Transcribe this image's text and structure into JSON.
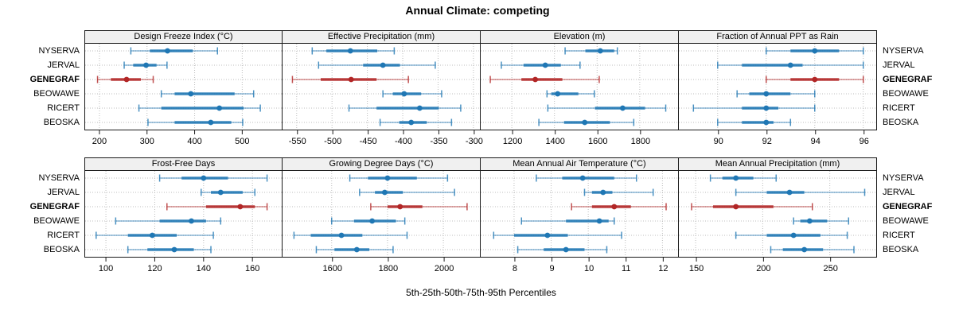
{
  "title": "Annual Climate: competing",
  "caption": "5th-25th-50th-75th-95th Percentiles",
  "sites": [
    "NYSERVA",
    "JERVAL",
    "GENEGRAF",
    "BEOWAWE",
    "RICERT",
    "BEOSKA"
  ],
  "highlight_site": "GENEGRAF",
  "percentile_levels": [
    5,
    25,
    50,
    75,
    95
  ],
  "colors": {
    "series": "#1f77b4",
    "highlight": "#b22626",
    "grid": "#bdbdbd",
    "header_bg": "#f0f0f0",
    "border": "#1a1a1a",
    "text": "#000000"
  },
  "chart_data": [
    {
      "type": "dot-interval",
      "title": "Design Freeze Index (°C)",
      "row": 0,
      "col": 0,
      "xlim": [
        170,
        583
      ],
      "ticks": [
        200,
        300,
        400,
        500
      ],
      "values": [
        [
          266,
          306,
          343,
          396,
          448
        ],
        [
          252,
          271,
          298,
          320,
          342
        ],
        [
          196,
          224,
          257,
          287,
          313
        ],
        [
          330,
          358,
          392,
          484,
          524
        ],
        [
          283,
          330,
          452,
          503,
          538
        ],
        [
          302,
          358,
          434,
          477,
          501
        ]
      ]
    },
    {
      "type": "dot-interval",
      "title": "Effective Precipitation (mm)",
      "row": 0,
      "col": 1,
      "xlim": [
        -570,
        -292
      ],
      "ticks": [
        -550,
        -500,
        -450,
        -400,
        -350,
        -300
      ],
      "values": [
        [
          -528,
          -508,
          -474,
          -436,
          -412
        ],
        [
          -519,
          -456,
          -428,
          -404,
          -354
        ],
        [
          -556,
          -516,
          -473,
          -437,
          -392
        ],
        [
          -428,
          -414,
          -398,
          -374,
          -345
        ],
        [
          -476,
          -437,
          -376,
          -349,
          -318
        ],
        [
          -432,
          -405,
          -388,
          -366,
          -331
        ]
      ]
    },
    {
      "type": "dot-interval",
      "title": "Elevation (m)",
      "row": 0,
      "col": 2,
      "xlim": [
        1054,
        1976
      ],
      "ticks": [
        1200,
        1400,
        1600,
        1800
      ],
      "values": [
        [
          1450,
          1545,
          1615,
          1680,
          1695
        ],
        [
          1151,
          1255,
          1357,
          1430,
          1520
        ],
        [
          1099,
          1245,
          1310,
          1437,
          1610
        ],
        [
          1365,
          1385,
          1415,
          1512,
          1587
        ],
        [
          1369,
          1590,
          1720,
          1825,
          1922
        ],
        [
          1327,
          1445,
          1542,
          1660,
          1772
        ]
      ]
    },
    {
      "type": "dot-interval",
      "title": "Fraction of Annual PPT as Rain",
      "row": 0,
      "col": 3,
      "xlim": [
        88.4,
        96.5
      ],
      "ticks": [
        90,
        92,
        94,
        96
      ],
      "values": [
        [
          92,
          93,
          94,
          95,
          96
        ],
        [
          90,
          91,
          93,
          93.5,
          96
        ],
        [
          92,
          93,
          94,
          95,
          96
        ],
        [
          90.8,
          91.3,
          92,
          93,
          94
        ],
        [
          89,
          91,
          92,
          92.5,
          94
        ],
        [
          90,
          91,
          92,
          92.3,
          93
        ]
      ]
    },
    {
      "type": "dot-interval",
      "title": "Frost-Free Days",
      "row": 1,
      "col": 0,
      "xlim": [
        91.5,
        172
      ],
      "ticks": [
        100,
        120,
        140,
        160
      ],
      "values": [
        [
          122,
          131,
          140,
          150,
          166
        ],
        [
          139,
          143,
          147,
          156,
          161
        ],
        [
          125,
          141,
          155,
          161,
          166
        ],
        [
          104,
          122,
          135,
          141,
          147
        ],
        [
          96,
          109,
          119,
          129,
          144
        ],
        [
          109,
          117,
          128,
          136,
          143
        ]
      ]
    },
    {
      "type": "dot-interval",
      "title": "Growing Degree Days (°C)",
      "row": 1,
      "col": 1,
      "xlim": [
        1424,
        2128
      ],
      "ticks": [
        1600,
        1800,
        2000
      ],
      "values": [
        [
          1665,
          1730,
          1800,
          1905,
          2015
        ],
        [
          1700,
          1755,
          1790,
          1855,
          2040
        ],
        [
          1740,
          1800,
          1845,
          1925,
          2085
        ],
        [
          1600,
          1680,
          1745,
          1830,
          1862
        ],
        [
          1465,
          1525,
          1635,
          1710,
          1870
        ],
        [
          1545,
          1610,
          1690,
          1735,
          1820
        ]
      ]
    },
    {
      "type": "dot-interval",
      "title": "Mean Annual Air Temperature (°C)",
      "row": 1,
      "col": 2,
      "xlim": [
        7.1,
        12.4
      ],
      "ticks": [
        8,
        9,
        10,
        11,
        12
      ],
      "values": [
        [
          8.6,
          9.3,
          9.85,
          10.7,
          11.3
        ],
        [
          9.9,
          10.1,
          10.4,
          10.65,
          11.75
        ],
        [
          9.55,
          10.1,
          10.7,
          11.15,
          12.1
        ],
        [
          8.2,
          9.4,
          10.3,
          10.55,
          10.7
        ],
        [
          7.45,
          8.0,
          8.9,
          9.45,
          10.9
        ],
        [
          8.1,
          8.8,
          9.4,
          9.9,
          10.5
        ]
      ]
    },
    {
      "type": "dot-interval",
      "title": "Mean Annual Precipitation (mm)",
      "row": 1,
      "col": 3,
      "xlim": [
        137.5,
        284
      ],
      "ticks": [
        150,
        200,
        250
      ],
      "values": [
        [
          161,
          170,
          180,
          193,
          210
        ],
        [
          180,
          203,
          220,
          231,
          276
        ],
        [
          147,
          163,
          180,
          208,
          237
        ],
        [
          223,
          228,
          235,
          248,
          264
        ],
        [
          180,
          203,
          223,
          243,
          263
        ],
        [
          206,
          215,
          231,
          245,
          268
        ]
      ]
    }
  ]
}
